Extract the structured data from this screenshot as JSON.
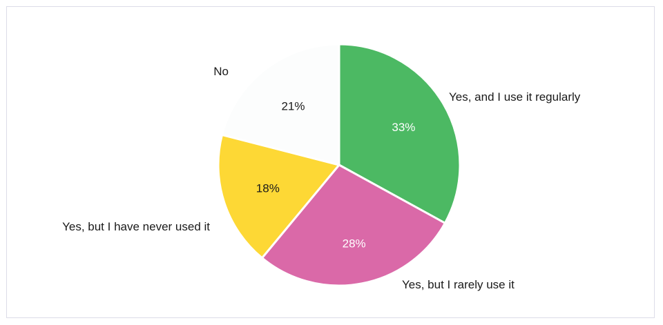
{
  "chart_data": {
    "type": "pie",
    "slices": [
      {
        "label": "Yes, and I use it regularly",
        "value": 33,
        "value_label": "33%",
        "color": "#4cb963",
        "text_color": "#ffffff"
      },
      {
        "label": "Yes, but I rarely use it",
        "value": 28,
        "value_label": "28%",
        "color": "#da69a8",
        "text_color": "#ffffff"
      },
      {
        "label": "Yes, but I have never used it",
        "value": 18,
        "value_label": "18%",
        "color": "#fdd835",
        "text_color": "#1a1a1a"
      },
      {
        "label": "No",
        "value": 21,
        "value_label": "21%",
        "color": "#fcfdfd",
        "text_color": "#1a1a1a"
      }
    ],
    "start": "12 o'clock",
    "direction": "clockwise",
    "legend": "none"
  }
}
